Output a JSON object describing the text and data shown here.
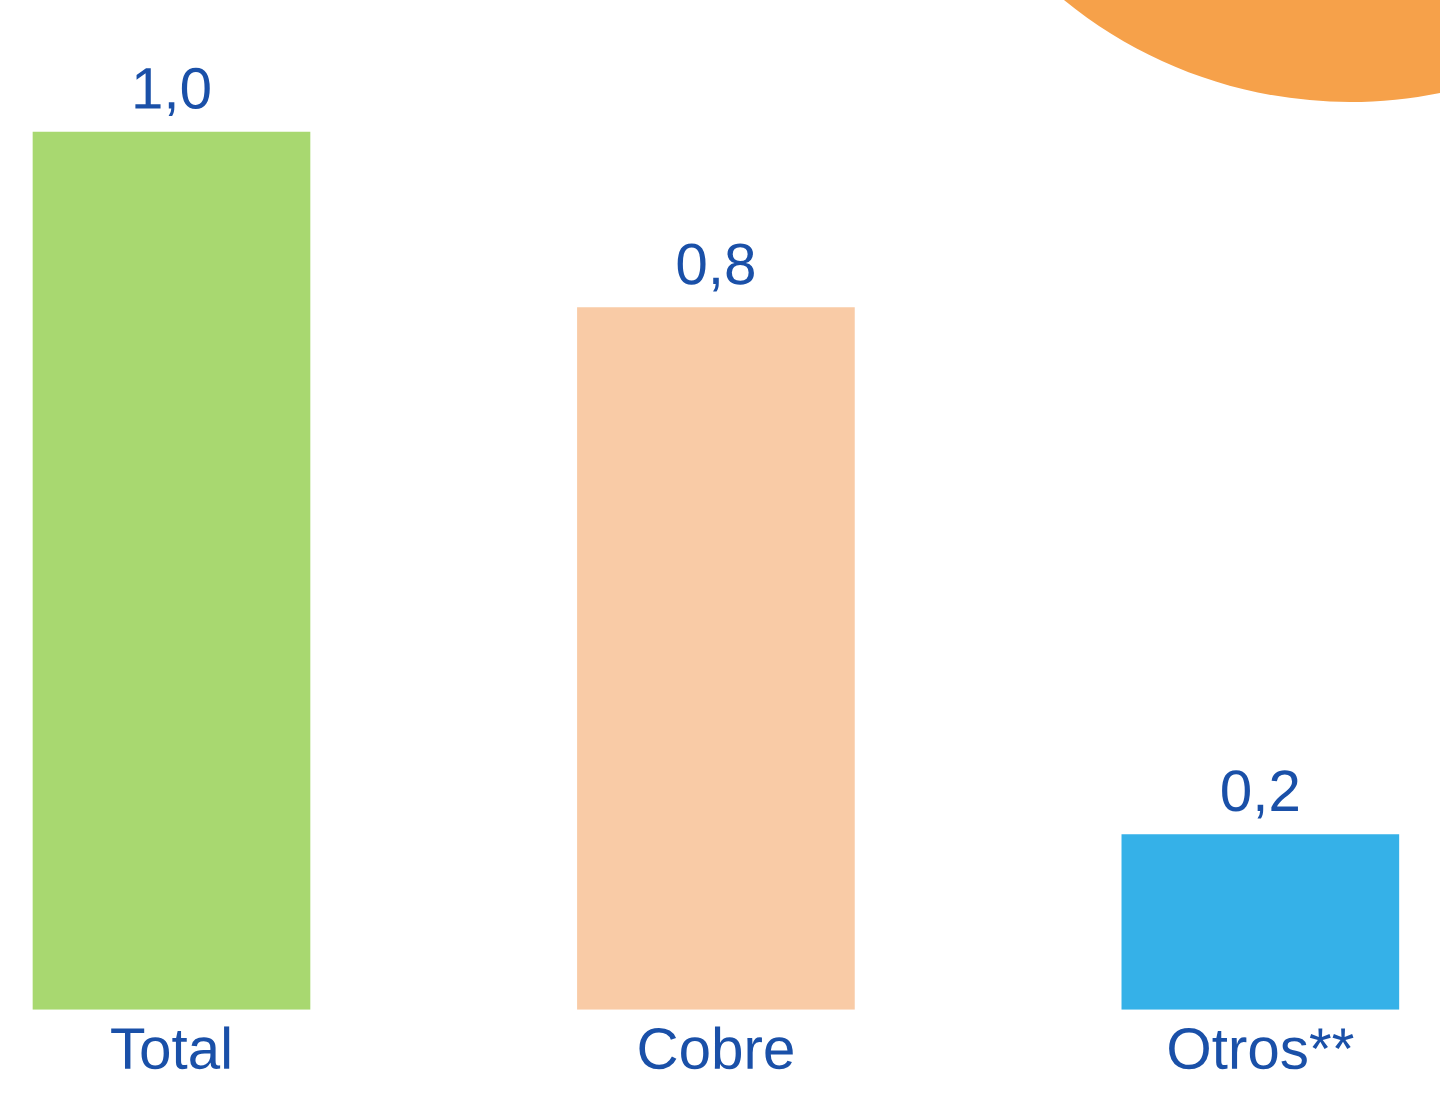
{
  "chart_data": {
    "type": "bar",
    "categories": [
      "Total",
      "Cobre",
      "Otros**"
    ],
    "values": [
      1.0,
      0.8,
      0.2
    ],
    "colors": [
      "#a8d870",
      "#f9cba6",
      "#35b1e8"
    ],
    "value_labels": [
      "1,0",
      "0,8",
      "0,2"
    ]
  }
}
